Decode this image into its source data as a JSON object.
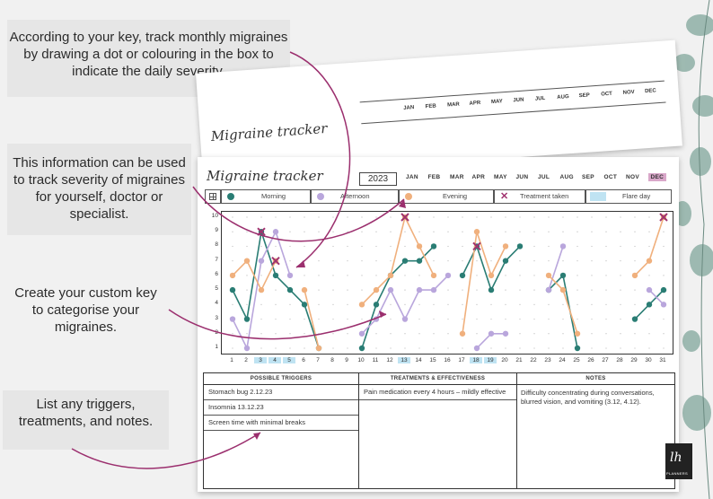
{
  "callouts": {
    "track": "According to your key, track monthly migraines by drawing a dot or colouring in the box to indicate the daily severity.",
    "info": "This information can be used to track severity of migraines for yourself, doctor or specialist.",
    "key": "Create your custom key to categorise your migraines.",
    "list": "List any triggers, treatments, and notes."
  },
  "tracker": {
    "title": "Migraine tracker",
    "year": "2023",
    "months": [
      "JAN",
      "FEB",
      "MAR",
      "APR",
      "MAY",
      "JUN",
      "JUL",
      "AUG",
      "SEP",
      "OCT",
      "NOV",
      "DEC"
    ],
    "selected_month": "DEC",
    "legend": {
      "morning": "Morning",
      "afternoon": "Afternoon",
      "evening": "Evening",
      "treatment": "Treatment taken",
      "flare": "Flare day"
    },
    "colors": {
      "morning": "#2a7d74",
      "afternoon": "#b9a6dc",
      "evening": "#f0b07d",
      "treatment": "#a0336f",
      "flare": "#bfe3f2"
    },
    "y_ticks": [
      "10",
      "9",
      "8",
      "7",
      "6",
      "5",
      "4",
      "3",
      "2",
      "1"
    ],
    "days": [
      "1",
      "2",
      "3",
      "4",
      "5",
      "6",
      "7",
      "8",
      "9",
      "10",
      "11",
      "12",
      "13",
      "14",
      "15",
      "16",
      "17",
      "18",
      "19",
      "20",
      "21",
      "22",
      "23",
      "24",
      "25",
      "26",
      "27",
      "28",
      "29",
      "30",
      "31"
    ],
    "flare_days": [
      3,
      4,
      5,
      13,
      18,
      19
    ]
  },
  "chart_data": {
    "type": "line",
    "x": [
      1,
      2,
      3,
      4,
      5,
      6,
      7,
      8,
      9,
      10,
      11,
      12,
      13,
      14,
      15,
      16,
      17,
      18,
      19,
      20,
      21,
      22,
      23,
      24,
      25,
      26,
      27,
      28,
      29,
      30,
      31
    ],
    "ylim": [
      1,
      10
    ],
    "series": [
      {
        "name": "Morning",
        "values": [
          5,
          3,
          9,
          6,
          5,
          4,
          1,
          null,
          null,
          1,
          4,
          6,
          7,
          7,
          8,
          null,
          6,
          8,
          5,
          7,
          8,
          null,
          5,
          6,
          1,
          null,
          null,
          null,
          3,
          4,
          5
        ]
      },
      {
        "name": "Afternoon",
        "values": [
          3,
          1,
          7,
          9,
          6,
          null,
          null,
          null,
          null,
          2,
          3,
          5,
          3,
          5,
          5,
          6,
          null,
          1,
          2,
          2,
          null,
          null,
          5,
          8,
          null,
          null,
          null,
          null,
          null,
          5,
          4
        ]
      },
      {
        "name": "Evening",
        "values": [
          6,
          7,
          5,
          7,
          null,
          5,
          1,
          null,
          null,
          4,
          5,
          6,
          10,
          8,
          6,
          null,
          2,
          9,
          6,
          8,
          null,
          null,
          6,
          5,
          2,
          null,
          null,
          null,
          6,
          7,
          10
        ]
      }
    ],
    "treatment_days": [
      {
        "x": 3,
        "y": 9
      },
      {
        "x": 4,
        "y": 7
      },
      {
        "x": 13,
        "y": 10
      },
      {
        "x": 18,
        "y": 8
      },
      {
        "x": 31,
        "y": 10
      }
    ]
  },
  "table": {
    "triggers_header": "POSSIBLE TRIGGERS",
    "treatments_header": "TREATMENTS & EFFECTIVENESS",
    "notes_header": "NOTES",
    "triggers": [
      "Stomach bug 2.12.23",
      "Insomnia 13.12.23",
      "Screen time with minimal breaks"
    ],
    "treatments": [
      "Pain medication every 4 hours –  mildly effective"
    ],
    "notes": "Difficulty concentrating during conversations, blurred vision, and vomiting (3.12, 4.12)."
  },
  "logo_text": "PLANNERS"
}
